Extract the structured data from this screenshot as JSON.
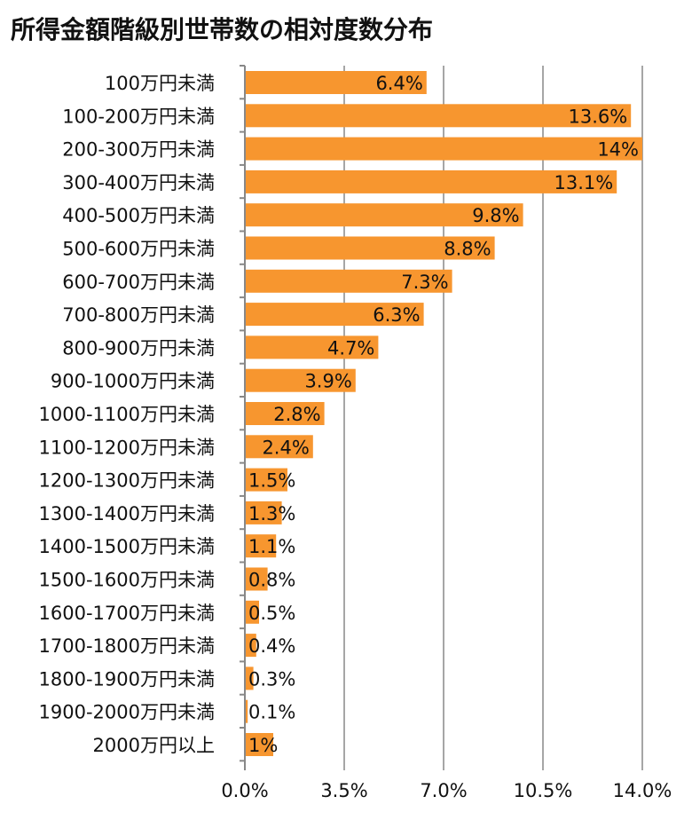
{
  "title": "所得金額階級別世帯数の相対度数分布",
  "colors": {
    "bar": "#F7962F",
    "grid": "#A6A6A6",
    "axis": "#888888",
    "text": "#111111"
  },
  "chart_data": {
    "type": "bar",
    "orientation": "horizontal",
    "title": "所得金額階級別世帯数の相対度数分布",
    "xlabel": "",
    "ylabel": "",
    "xlim": [
      0,
      14.0
    ],
    "x_ticks": [
      "0.0%",
      "3.5%",
      "7.0%",
      "10.5%",
      "14.0%"
    ],
    "tick_values": [
      0,
      3.5,
      7.0,
      10.5,
      14.0
    ],
    "grid": true,
    "legend": "none",
    "categories": [
      "100万円未満",
      "100-200万円未満",
      "200-300万円未満",
      "300-400万円未満",
      "400-500万円未満",
      "500-600万円未満",
      "600-700万円未満",
      "700-800万円未満",
      "800-900万円未満",
      "900-1000万円未満",
      "1000-1100万円未満",
      "1100-1200万円未満",
      "1200-1300万円未満",
      "1300-1400万円未満",
      "1400-1500万円未満",
      "1500-1600万円未満",
      "1600-1700万円未満",
      "1700-1800万円未満",
      "1800-1900万円未満",
      "1900-2000万円未満",
      "2000万円以上"
    ],
    "values": [
      6.4,
      13.6,
      14,
      13.1,
      9.8,
      8.8,
      7.3,
      6.3,
      4.7,
      3.9,
      2.8,
      2.4,
      1.5,
      1.3,
      1.1,
      0.8,
      0.5,
      0.4,
      0.3,
      0.1,
      1
    ],
    "data_labels": [
      "6.4%",
      "13.6%",
      "14%",
      "13.1%",
      "9.8%",
      "8.8%",
      "7.3%",
      "6.3%",
      "4.7%",
      "3.9%",
      "2.8%",
      "2.4%",
      "1.5%",
      "1.3%",
      "1.1%",
      "0.8%",
      "0.5%",
      "0.4%",
      "0.3%",
      "0.1%",
      "1%"
    ]
  }
}
